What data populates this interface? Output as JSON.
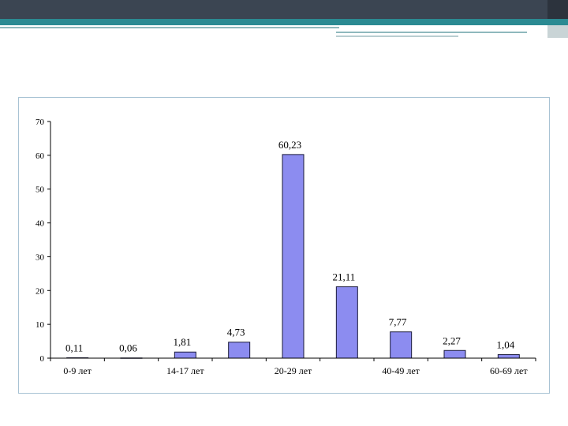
{
  "colors": {
    "top_bar": "#3b4552",
    "accent": "#2b8a92",
    "bar_fill": "#8c8cf0",
    "bar_stroke": "#1a1a3a",
    "frame_border": "#a8c3d4"
  },
  "chart_data": {
    "type": "bar",
    "title": "",
    "xlabel": "",
    "ylabel": "",
    "ylim": [
      0,
      70
    ],
    "yticks": [
      0,
      10,
      20,
      30,
      40,
      50,
      60,
      70
    ],
    "grid": false,
    "legend": "none",
    "categories": [
      "0-9 лет",
      "",
      "14-17 лет",
      "",
      "20-29 лет",
      "",
      "40-49 лет",
      "",
      "60-69 лет"
    ],
    "values": [
      0.11,
      0.06,
      1.81,
      4.73,
      60.23,
      21.11,
      7.77,
      2.27,
      1.04
    ],
    "value_labels": [
      "0,11",
      "0,06",
      "1,81",
      "4,73",
      "60,23",
      "21,11",
      "7,77",
      "2,27",
      "1,04"
    ]
  }
}
